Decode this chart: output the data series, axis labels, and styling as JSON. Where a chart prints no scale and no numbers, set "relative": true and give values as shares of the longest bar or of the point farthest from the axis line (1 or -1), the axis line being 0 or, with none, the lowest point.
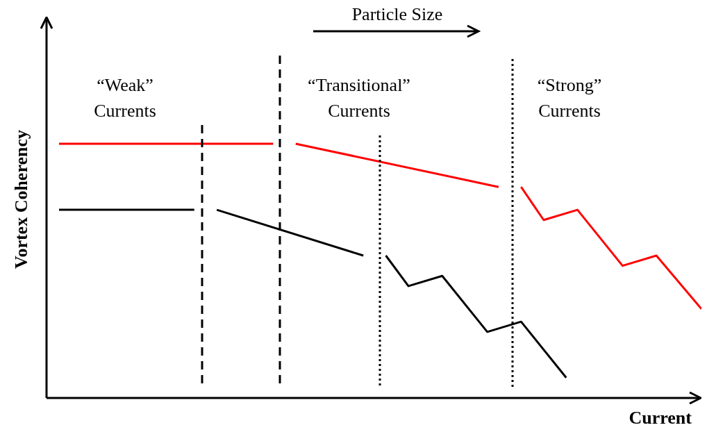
{
  "chart_data": {
    "type": "line",
    "relative": true,
    "xlabel": "Current",
    "ylabel": "Vortex Coherency",
    "line_style": "solid",
    "marker": "none",
    "categories": [
      null,
      null,
      null,
      null,
      null,
      null,
      null,
      null,
      null,
      null,
      null,
      null,
      null,
      null,
      null,
      null,
      null,
      null,
      null,
      null,
      null,
      null,
      null,
      null,
      null,
      null,
      null,
      null,
      null,
      null,
      null,
      null,
      null,
      null,
      null,
      null,
      null,
      null,
      null,
      null,
      null,
      null,
      null,
      null,
      null,
      null,
      null,
      null,
      null,
      null,
      null,
      null,
      null,
      null,
      null,
      null,
      null,
      null
    ],
    "series": [
      {
        "color": "#ff0000",
        "values": [
          1,
          null,
          null,
          null,
          null,
          null,
          null,
          null,
          null,
          null,
          null,
          null,
          null,
          null,
          null,
          null,
          null,
          null,
          null,
          1,
          null,
          null,
          null,
          null,
          null,
          null,
          null,
          null,
          null,
          null,
          null,
          null,
          null,
          null,
          null,
          null,
          null,
          null,
          null,
          null,
          null,
          null,
          null,
          null,
          null,
          null,
          null,
          null,
          null,
          null,
          null,
          null,
          null,
          null,
          null,
          null,
          null,
          null
        ]
      },
      {
        "color": "#ff0000",
        "values": [
          null,
          null,
          null,
          null,
          null,
          null,
          null,
          null,
          null,
          null,
          null,
          null,
          null,
          null,
          null,
          null,
          null,
          null,
          null,
          null,
          null,
          1,
          null,
          null,
          null,
          null,
          null,
          null,
          null,
          null,
          null,
          null,
          null,
          null,
          null,
          null,
          null,
          null,
          null,
          0.83,
          null,
          null,
          null,
          null,
          null,
          null,
          null,
          null,
          null,
          null,
          null,
          null,
          null,
          null,
          null,
          null,
          null,
          null
        ]
      },
      {
        "color": "#ff0000",
        "values": [
          null,
          null,
          null,
          null,
          null,
          null,
          null,
          null,
          null,
          null,
          null,
          null,
          null,
          null,
          null,
          null,
          null,
          null,
          null,
          null,
          null,
          null,
          null,
          null,
          null,
          null,
          null,
          null,
          null,
          null,
          null,
          null,
          null,
          null,
          null,
          null,
          null,
          null,
          null,
          null,
          null,
          0.83,
          null,
          0.7,
          null,
          null,
          0.74,
          null,
          null,
          null,
          0.52,
          null,
          null,
          0.56,
          null,
          null,
          null,
          0.35
        ]
      },
      {
        "color": "#000000",
        "values": [
          0.74,
          null,
          null,
          null,
          null,
          null,
          null,
          null,
          null,
          null,
          null,
          null,
          0.74,
          null,
          null,
          null,
          null,
          null,
          null,
          null,
          null,
          null,
          null,
          null,
          null,
          null,
          null,
          null,
          null,
          null,
          null,
          null,
          null,
          null,
          null,
          null,
          null,
          null,
          null,
          null,
          null,
          null,
          null,
          null,
          null,
          null,
          null,
          null,
          null,
          null,
          null,
          null,
          null,
          null,
          null,
          null,
          null,
          null
        ]
      },
      {
        "color": "#000000",
        "values": [
          null,
          null,
          null,
          null,
          null,
          null,
          null,
          null,
          null,
          null,
          null,
          null,
          null,
          null,
          0.74,
          null,
          null,
          null,
          null,
          null,
          null,
          null,
          null,
          null,
          null,
          null,
          null,
          0.56,
          null,
          null,
          null,
          null,
          null,
          null,
          null,
          null,
          null,
          null,
          null,
          null,
          null,
          null,
          null,
          null,
          null,
          null,
          null,
          null,
          null,
          null,
          null,
          null,
          null,
          null,
          null,
          null,
          null,
          null
        ]
      },
      {
        "color": "#000000",
        "values": [
          null,
          null,
          null,
          null,
          null,
          null,
          null,
          null,
          null,
          null,
          null,
          null,
          null,
          null,
          null,
          null,
          null,
          null,
          null,
          null,
          null,
          null,
          null,
          null,
          null,
          null,
          null,
          null,
          null,
          0.56,
          null,
          0.44,
          null,
          null,
          0.48,
          null,
          null,
          null,
          0.26,
          null,
          null,
          0.3,
          null,
          null,
          null,
          0.08,
          null,
          null,
          null,
          null,
          null,
          null,
          null,
          null,
          null,
          null,
          null,
          null
        ]
      }
    ],
    "annotations": [
      "Particle Size",
      "“Weak”\nCurrents",
      "“Transitional”\nCurrents",
      "“Strong”\nCurrents"
    ]
  }
}
